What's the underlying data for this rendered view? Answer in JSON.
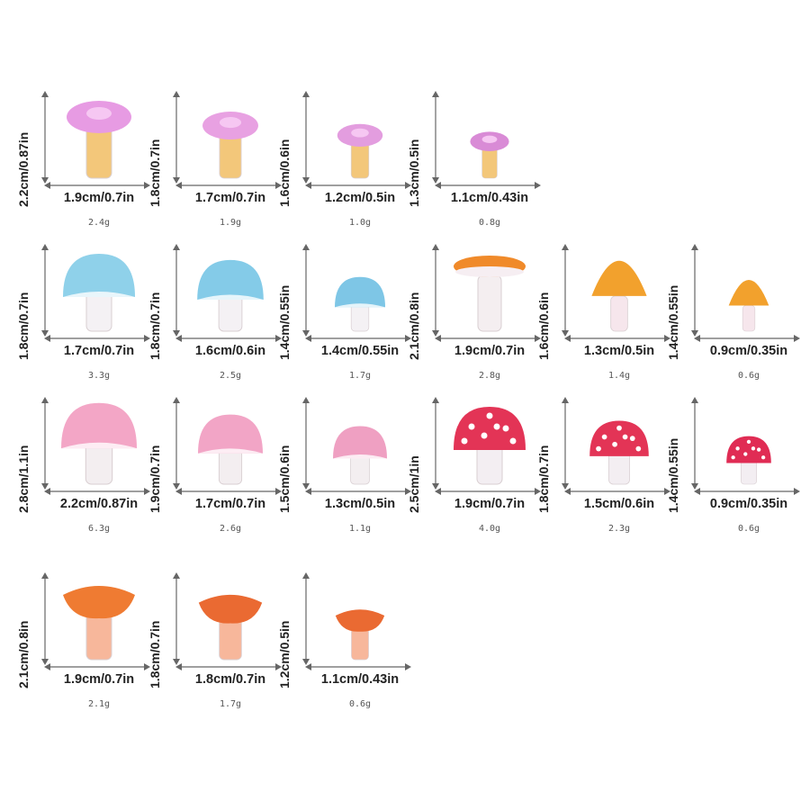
{
  "mushrooms": [
    {
      "height": "2.2cm/0.87in",
      "width": "1.9cm/0.7in",
      "weight": "2.4g",
      "cap": "#e79be3",
      "stem": "#f3c77a",
      "style": "dome",
      "scale": 1.0
    },
    {
      "height": "1.8cm/0.7in",
      "width": "1.7cm/0.7in",
      "weight": "1.9g",
      "cap": "#e8a1e2",
      "stem": "#f3c77a",
      "style": "dome",
      "scale": 0.86
    },
    {
      "height": "1.6cm/0.6in",
      "width": "1.2cm/0.5in",
      "weight": "1.0g",
      "cap": "#e39ddf",
      "stem": "#f3c77a",
      "style": "dome",
      "scale": 0.7
    },
    {
      "height": "1.3cm/0.5in",
      "width": "1.1cm/0.43in",
      "weight": "0.8g",
      "cap": "#d98bd6",
      "stem": "#f3c77a",
      "style": "dome",
      "scale": 0.6
    },
    {
      "height": "1.8cm/0.7in",
      "width": "1.7cm/0.7in",
      "weight": "3.3g",
      "cap": "#8fd1ea",
      "stem": "#f4f1f4",
      "style": "round",
      "scale": 1.0
    },
    {
      "height": "1.8cm/0.7in",
      "width": "1.6cm/0.6in",
      "weight": "2.5g",
      "cap": "#84cbe8",
      "stem": "#f4f1f4",
      "style": "round",
      "scale": 0.92
    },
    {
      "height": "1.4cm/0.55in",
      "width": "1.4cm/0.55in",
      "weight": "1.7g",
      "cap": "#7ec6e6",
      "stem": "#f4f1f4",
      "style": "round",
      "scale": 0.7
    },
    {
      "height": "2.1cm/0.8in",
      "width": "1.9cm/0.7in",
      "weight": "2.8g",
      "cap": "#f08a2a",
      "stem": "#f4eef0",
      "style": "flat",
      "scale": 1.0
    },
    {
      "height": "1.6cm/0.6in",
      "width": "1.3cm/0.5in",
      "weight": "1.4g",
      "cap": "#f2a12d",
      "stem": "#f6e6ec",
      "style": "cone",
      "scale": 0.85
    },
    {
      "height": "1.4cm/0.55in",
      "width": "0.9cm/0.35in",
      "weight": "0.6g",
      "cap": "#f2a12d",
      "stem": "#f6e6ec",
      "style": "cone",
      "scale": 0.62
    },
    {
      "height": "2.8cm/1.1in",
      "width": "2.2cm/0.87in",
      "weight": "6.3g",
      "cap": "#f3a6c6",
      "stem": "#f3eef0",
      "style": "round",
      "scale": 1.05
    },
    {
      "height": "1.9cm/0.7in",
      "width": "1.7cm/0.7in",
      "weight": "2.6g",
      "cap": "#f2a5c6",
      "stem": "#f3eef0",
      "style": "round",
      "scale": 0.9
    },
    {
      "height": "1.5cm/0.6in",
      "width": "1.3cm/0.5in",
      "weight": "1.1g",
      "cap": "#efa0c2",
      "stem": "#f3eef0",
      "style": "round",
      "scale": 0.75
    },
    {
      "height": "2.5cm/1in",
      "width": "1.9cm/0.7in",
      "weight": "4.0g",
      "cap": "#e33456",
      "stem": "#f3eef2",
      "style": "spotted",
      "scale": 1.0
    },
    {
      "height": "1.8cm/0.7in",
      "width": "1.5cm/0.6in",
      "weight": "2.3g",
      "cap": "#e33456",
      "stem": "#f3eef2",
      "style": "spotted",
      "scale": 0.82
    },
    {
      "height": "1.4cm/0.55in",
      "width": "0.9cm/0.35in",
      "weight": "0.6g",
      "cap": "#e02c54",
      "stem": "#f3eef2",
      "style": "spotted",
      "scale": 0.62
    },
    {
      "height": "2.1cm/0.8in",
      "width": "1.9cm/0.7in",
      "weight": "2.1g",
      "cap": "#ef7b32",
      "stem": "#f7b79b",
      "style": "funnel",
      "scale": 1.0
    },
    {
      "height": "1.8cm/0.7in",
      "width": "1.8cm/0.7in",
      "weight": "1.7g",
      "cap": "#ea6a32",
      "stem": "#f7b79b",
      "style": "funnel",
      "scale": 0.88
    },
    {
      "height": "1.2cm/0.5in",
      "width": "1.1cm/0.43in",
      "weight": "0.6g",
      "cap": "#ea6a32",
      "stem": "#f7b79b",
      "style": "funnel",
      "scale": 0.68
    }
  ]
}
